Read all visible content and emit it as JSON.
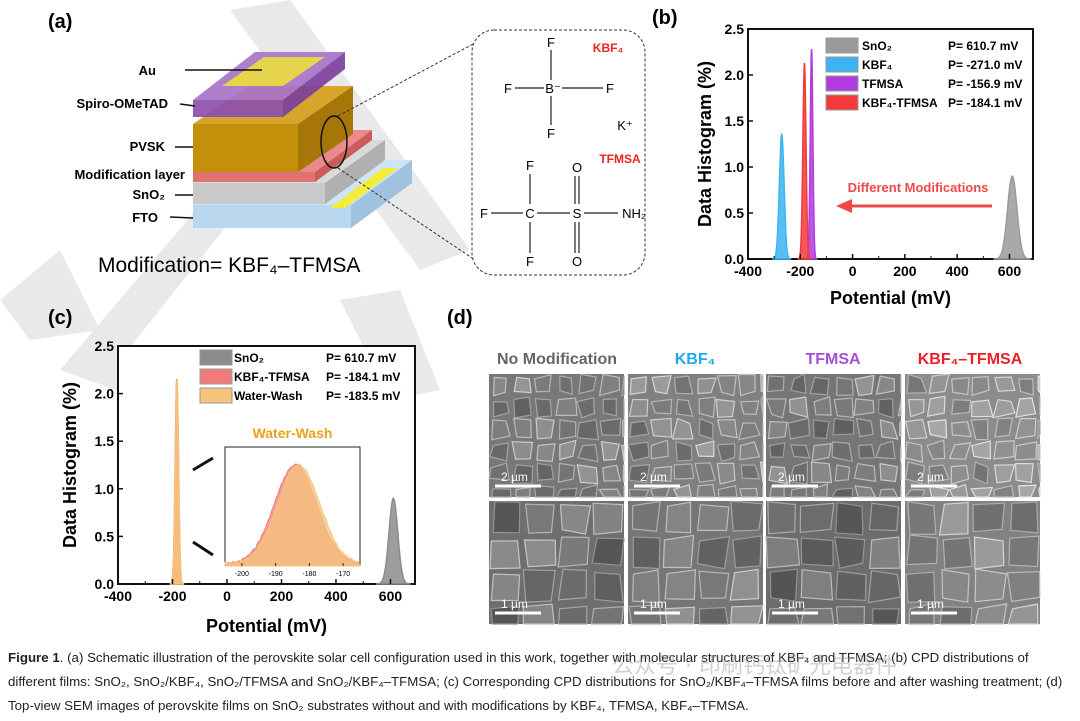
{
  "panel_labels": {
    "a": "(a)",
    "b": "(b)",
    "c": "(c)",
    "d": "(d)"
  },
  "panel_a": {
    "layers": [
      "Au",
      "Spiro-OMeTAD",
      "PVSK",
      "Modification layer",
      "SnO₂",
      "FTO"
    ],
    "formula": "Modification= KBF₄–TFMSA",
    "colors": {
      "au": "#e6d44a",
      "spiro": "#9b5fc0",
      "pvsk": "#c4900c",
      "modification": "#e07272",
      "sno2": "#c9c9c9",
      "fto": "#b9d7ef"
    },
    "kbf4": {
      "name": "KBF₄",
      "atom_b": "B⁻",
      "atom_f": "F",
      "cation": "K⁺"
    },
    "tfmsa": {
      "name": "TFMSA",
      "atom_c": "C",
      "atom_s": "S",
      "atom_o": "O",
      "atom_f": "F",
      "group_nh2": "NH₂"
    },
    "name_color": "#ee2222"
  },
  "panel_d": {
    "columns": [
      {
        "label": "No Modification",
        "color": "#666666"
      },
      {
        "label": "KBF₄",
        "color": "#1fa9e8"
      },
      {
        "label": "TFMSA",
        "color": "#a64fd6"
      },
      {
        "label": "KBF₄–TFMSA",
        "color": "#e8202a"
      }
    ],
    "scale_bars": [
      "2 µm",
      "1 µm"
    ]
  },
  "chart_data": [
    {
      "id": "b",
      "type": "area",
      "xlabel": "Potential (mV)",
      "ylabel": "Data Histogram (%)",
      "xlim": [
        -400,
        690
      ],
      "ylim": [
        0,
        2.5
      ],
      "xticks": [
        "-400",
        "-200",
        "0",
        "200",
        "400",
        "600"
      ],
      "yticks": [
        "0.0",
        "0.5",
        "1.0",
        "1.5",
        "2.0",
        "2.5"
      ],
      "legend_position": "top-right",
      "series": [
        {
          "name": "SnO₂",
          "value_label": "P= 610.7 mV",
          "peak_x": 610.7,
          "peak_y": 0.9,
          "color": "#9a9a9a"
        },
        {
          "name": "KBF₄",
          "value_label": "P= -271.0 mV",
          "peak_x": -271.0,
          "peak_y": 1.35,
          "color": "#3bb4f0"
        },
        {
          "name": "TFMSA",
          "value_label": "P= -156.9 mV",
          "peak_x": -156.9,
          "peak_y": 2.28,
          "color": "#b13be0"
        },
        {
          "name": "KBF₄-TFMSA",
          "value_label": "P= -184.1 mV",
          "peak_x": -184.1,
          "peak_y": 2.13,
          "color": "#f23a3a"
        }
      ],
      "annotation": "Different Modifications",
      "annotation_color": "#f04848"
    },
    {
      "id": "c",
      "type": "area",
      "xlabel": "Potential (mV)",
      "ylabel": "Data Histogram (%)",
      "xlim": [
        -400,
        690
      ],
      "ylim": [
        0,
        2.5
      ],
      "xticks": [
        "-400",
        "-200",
        "0",
        "200",
        "400",
        "600"
      ],
      "yticks": [
        "0.0",
        "0.5",
        "1.0",
        "1.5",
        "2.0",
        "2.5"
      ],
      "legend_position": "top-right",
      "series": [
        {
          "name": "SnO₂",
          "value_label": "P= 610.7 mV",
          "peak_x": 610.7,
          "peak_y": 0.9,
          "color": "#8c8c8c"
        },
        {
          "name": "KBF₄-TFMSA",
          "value_label": "P= -184.1 mV",
          "peak_x": -184.1,
          "peak_y": 2.15,
          "color": "#f27a7a"
        },
        {
          "name": "Water-Wash",
          "value_label": "P= -183.5 mV",
          "peak_x": -183.5,
          "peak_y": 2.14,
          "color": "#f3c47a"
        }
      ],
      "inset": {
        "title": "Water-Wash",
        "title_color": "#e9a21c",
        "xlim": [
          -205,
          -165
        ],
        "xticks": [
          "-200",
          "-190",
          "-180",
          "-170"
        ]
      }
    }
  ],
  "caption": {
    "lead": "Figure 1",
    "text": ". (a) Schematic illustration of the perovskite solar cell configuration used in this work, together with molecular structures of KBF₄ and TFMSA; (b) CPD distributions of different films: SnO₂, SnO₂/KBF₄, SnO₂/TFMSA and SnO₂/KBF₄–TFMSA; (c) Corresponding CPD distributions for SnO₂/KBF₄–TFMSA films before and after washing treatment; (d) Top-view SEM images of perovskite films on SnO₂ substrates without and with modifications by KBF₄, TFMSA, KBF₄–TFMSA."
  },
  "watermark": "公众号 · 印刷钙钛矿光电器件"
}
